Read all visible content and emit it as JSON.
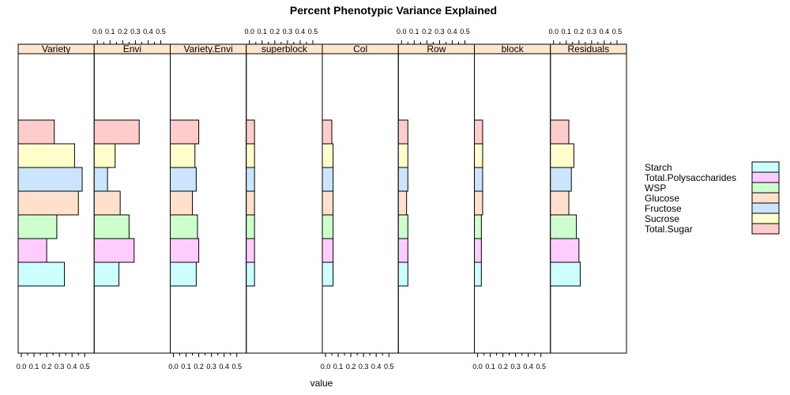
{
  "chart_data": {
    "type": "bar",
    "orientation": "horizontal",
    "layout": "small-multiples",
    "title": "Percent Phenotypic Variance Explained",
    "xlabel": "value",
    "ylabel": "",
    "xlim": [
      0,
      0.55
    ],
    "tick_values": [
      0.0,
      0.1,
      0.2,
      0.3,
      0.4,
      0.5
    ],
    "tick_labels": [
      "0.0",
      "0.1",
      "0.2",
      "0.3",
      "0.4",
      "0.5"
    ],
    "panels": [
      "Variety",
      "Envi",
      "Variety.Envi",
      "superblock",
      "Col",
      "Row",
      "block",
      "Residuals"
    ],
    "categories_top_to_bottom": [
      "Total.Sugar",
      "Sucrose",
      "Fructose",
      "Glucose",
      "WSP",
      "Total.Polysaccharides",
      "Starch"
    ],
    "series": [
      {
        "name": "Total.Sugar",
        "color": "#ffcccc",
        "values": [
          0.26,
          0.33,
          0.2,
          0.04,
          0.05,
          0.05,
          0.04,
          0.12
        ]
      },
      {
        "name": "Sucrose",
        "color": "#ffffcc",
        "values": [
          0.42,
          0.14,
          0.17,
          0.04,
          0.06,
          0.05,
          0.04,
          0.16
        ]
      },
      {
        "name": "Fructose",
        "color": "#cce5ff",
        "values": [
          0.48,
          0.08,
          0.18,
          0.04,
          0.06,
          0.05,
          0.04,
          0.14
        ]
      },
      {
        "name": "Glucose",
        "color": "#ffe0cc",
        "values": [
          0.45,
          0.18,
          0.15,
          0.04,
          0.06,
          0.04,
          0.04,
          0.12
        ]
      },
      {
        "name": "WSP",
        "color": "#ccffcc",
        "values": [
          0.28,
          0.25,
          0.19,
          0.04,
          0.06,
          0.05,
          0.03,
          0.18
        ]
      },
      {
        "name": "Total.Polysaccharides",
        "color": "#ffccff",
        "values": [
          0.2,
          0.29,
          0.2,
          0.04,
          0.06,
          0.05,
          0.03,
          0.2
        ]
      },
      {
        "name": "Starch",
        "color": "#ccffff",
        "values": [
          0.34,
          0.17,
          0.18,
          0.04,
          0.06,
          0.05,
          0.03,
          0.21
        ]
      }
    ],
    "legend": {
      "placement": "right",
      "entries": [
        "Starch",
        "Total.Polysaccharides",
        "WSP",
        "Glucose",
        "Fructose",
        "Sucrose",
        "Total.Sugar"
      ],
      "colors": [
        "#ccffff",
        "#ffccff",
        "#ccffcc",
        "#ffe0cc",
        "#cce5ff",
        "#ffffcc",
        "#ffcccc"
      ]
    },
    "strip_color": "#ffe5cc",
    "grid": false
  }
}
